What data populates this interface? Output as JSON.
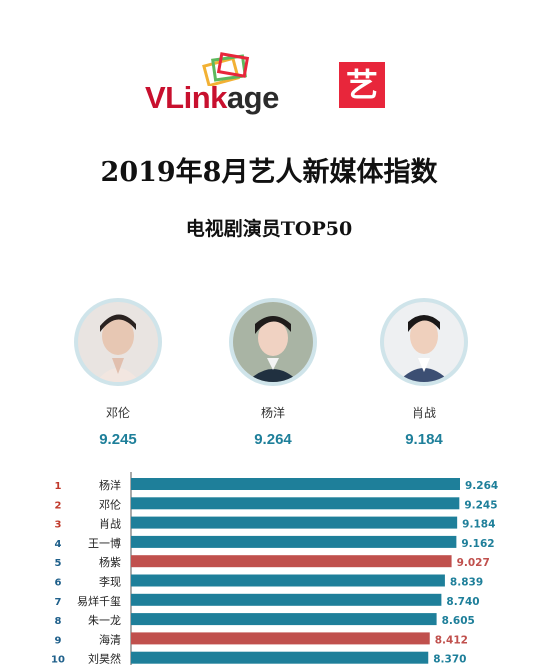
{
  "logo": {
    "brand_left": "VLink",
    "brand_right": "age",
    "badge": "艺"
  },
  "title": "2019年8月艺人新媒体指数",
  "subtitle": "电视剧演员TOP50",
  "podium": [
    {
      "name": "邓伦",
      "score": "9.245"
    },
    {
      "name": "杨洋",
      "score": "9.264"
    },
    {
      "name": "肖战",
      "score": "9.184"
    }
  ],
  "colors": {
    "teal": "#1e7f9a",
    "red": "#c0504d",
    "rank_red": "#c0392b",
    "rank_blue": "#1e5f8a"
  },
  "chart_data": {
    "type": "bar",
    "orientation": "horizontal",
    "ranks": [
      "1",
      "2",
      "3",
      "4",
      "5",
      "6",
      "7",
      "8",
      "9",
      "10"
    ],
    "categories": [
      "杨洋",
      "邓伦",
      "肖战",
      "王一博",
      "杨紫",
      "李现",
      "易烊千玺",
      "朱一龙",
      "海清",
      "刘昊然"
    ],
    "values": [
      9.264,
      9.245,
      9.184,
      9.162,
      9.027,
      8.839,
      8.74,
      8.605,
      8.412,
      8.37
    ],
    "labels": [
      "9.264",
      "9.245",
      "9.184",
      "9.162",
      "9.027",
      "8.839",
      "8.740",
      "8.605",
      "8.412",
      "8.370"
    ],
    "highlight": [
      false,
      false,
      false,
      false,
      true,
      false,
      false,
      false,
      true,
      false
    ]
  }
}
